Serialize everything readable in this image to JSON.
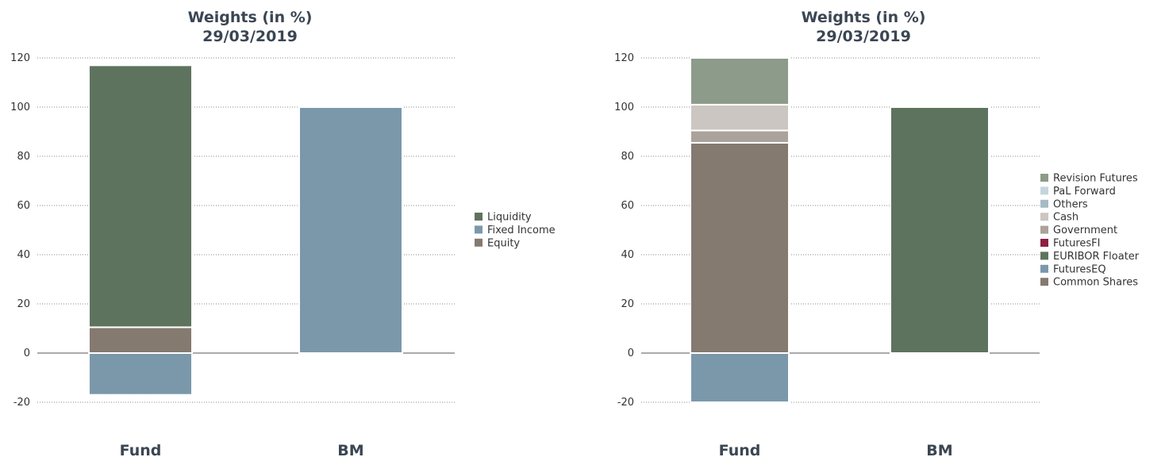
{
  "chart_data": [
    {
      "type": "bar",
      "stacked": true,
      "title": "Weights (in %)",
      "subtitle": "29/03/2019",
      "categories": [
        "Fund",
        "BM"
      ],
      "ylim": [
        -20,
        120
      ],
      "yticks": [
        -20,
        0,
        20,
        40,
        60,
        80,
        100,
        120
      ],
      "grid": true,
      "legend_position": "right",
      "legend": [
        "Liquidity",
        "Fixed Income",
        "Equity"
      ],
      "series": [
        {
          "name": "Equity",
          "color": "#857a70",
          "values": [
            10.5,
            0
          ]
        },
        {
          "name": "Fixed Income",
          "color": "#7b98ab",
          "values": [
            -17,
            100
          ]
        },
        {
          "name": "Liquidity",
          "color": "#5e735e",
          "values": [
            106.5,
            0
          ]
        }
      ]
    },
    {
      "type": "bar",
      "stacked": true,
      "title": "Weights (in %)",
      "subtitle": "29/03/2019",
      "categories": [
        "Fund",
        "BM"
      ],
      "ylim": [
        -20,
        120
      ],
      "yticks": [
        -20,
        0,
        20,
        40,
        60,
        80,
        100,
        120
      ],
      "grid": true,
      "legend_position": "right",
      "legend": [
        "Revision Futures",
        "PaL Forward",
        "Others",
        "Cash",
        "Government",
        "FuturesFI",
        "EURIBOR Floater",
        "FuturesEQ",
        "Common Shares"
      ],
      "legend_colors": {
        "Revision Futures": "#8c9b8a",
        "PaL Forward": "#c5d5de",
        "Others": "#a6bac5",
        "Cash": "#cbc6c1",
        "Government": "#aaa29b",
        "FuturesFI": "#8b2040",
        "EURIBOR Floater": "#5e735e",
        "FuturesEQ": "#7b98ab",
        "Common Shares": "#857a70"
      },
      "series": [
        {
          "name": "Common Shares",
          "color": "#857a70",
          "values": [
            85.5,
            0
          ]
        },
        {
          "name": "FuturesEQ",
          "color": "#7b98ab",
          "values": [
            -20,
            0
          ]
        },
        {
          "name": "EURIBOR Floater",
          "color": "#5e735e",
          "values": [
            0,
            100
          ]
        },
        {
          "name": "FuturesFI",
          "color": "#8b2040",
          "values": [
            0,
            0
          ]
        },
        {
          "name": "Government",
          "color": "#aaa29b",
          "values": [
            5,
            0
          ]
        },
        {
          "name": "Cash",
          "color": "#cbc6c1",
          "values": [
            10.5,
            0
          ]
        },
        {
          "name": "Others",
          "color": "#a6bac5",
          "values": [
            0,
            0
          ]
        },
        {
          "name": "PaL Forward",
          "color": "#c5d5de",
          "values": [
            0,
            0
          ]
        },
        {
          "name": "Revision Futures",
          "color": "#8c9b8a",
          "values": [
            19,
            0
          ]
        }
      ]
    }
  ]
}
